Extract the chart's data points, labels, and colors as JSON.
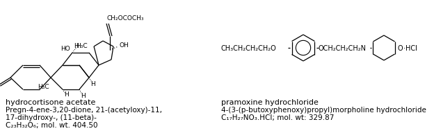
{
  "bg_color": "#ffffff",
  "left_name": "hydrocortisone acetate",
  "left_line2": "Pregn-4-ene-3,20-dione, 21-(acetyloxy)-11,",
  "left_line3": "17-dihydroxy-, (11-beta)-",
  "left_formula": "C₂₃H₃₂O₆; mol. wt. 404.50",
  "right_name": "pramoxine hydrochloride",
  "right_line2": "4-(3-(p-butoxyphenoxy)propyl)morpholine hydrochloride",
  "right_formula": "C₁₇H₂₇NO₃.HCl; mol. wt: 329.87",
  "font_size_name": 8.0,
  "font_size_text": 7.5,
  "font_size_struct": 6.5,
  "lw": 0.9
}
